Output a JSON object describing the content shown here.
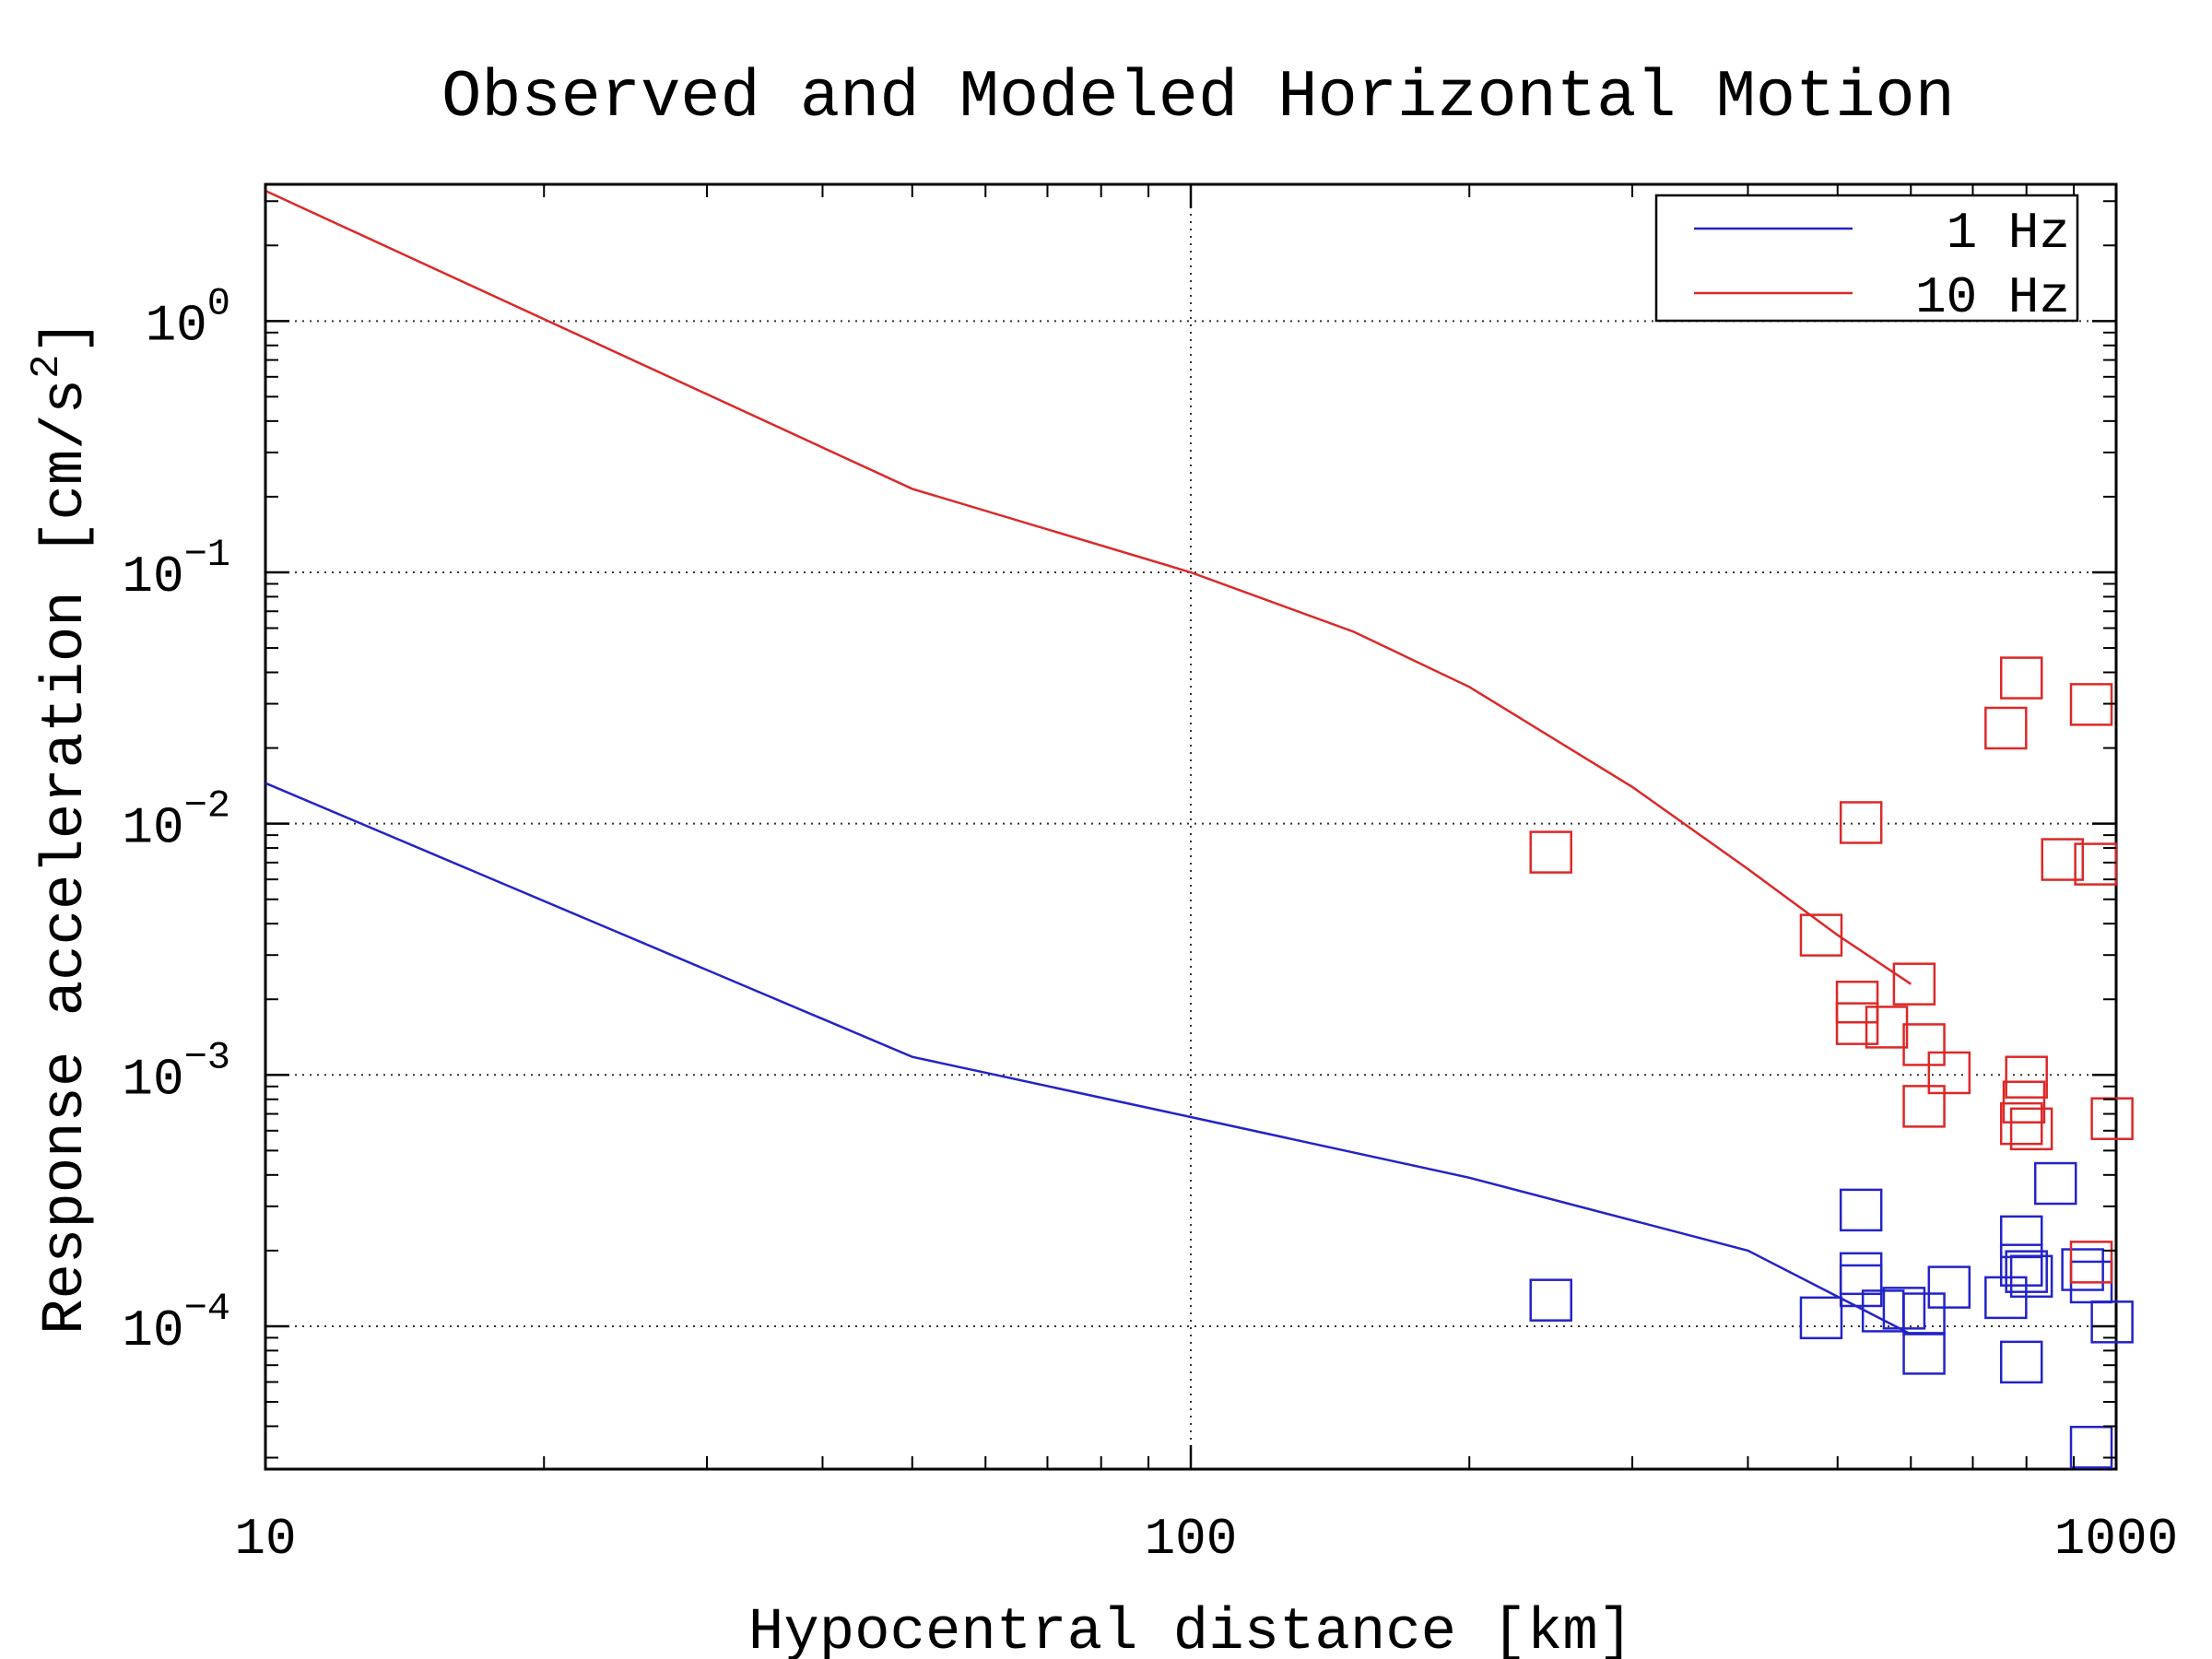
{
  "chart_data": {
    "type": "scatter",
    "title": "Observed and Modeled Horizontal Motion",
    "xlabel": "Hypocentral distance [km]",
    "ylabel": "Response acceleration [cm/s",
    "ylabel_sup": "2",
    "ylabel_tail": "]",
    "xscale": "log",
    "yscale": "log",
    "xlim": [
      10,
      1000
    ],
    "ylim": [
      2.7e-05,
      3.5
    ],
    "grid": "dotted at major ticks",
    "legend": "top-right",
    "x_ticks": [
      {
        "value": 10,
        "label": "10"
      },
      {
        "value": 100,
        "label": "100"
      },
      {
        "value": 1000,
        "label": "1000"
      }
    ],
    "y_ticks": [
      {
        "value": 1,
        "base": "10",
        "exp": "0"
      },
      {
        "value": 0.1,
        "base": "10",
        "exp": "−1"
      },
      {
        "value": 0.01,
        "base": "10",
        "exp": "−2"
      },
      {
        "value": 0.001,
        "base": "10",
        "exp": "−3"
      },
      {
        "value": 0.0001,
        "base": "10",
        "exp": "−4"
      }
    ],
    "series": [
      {
        "name": "1 Hz",
        "color": "#2323c8",
        "line": [
          [
            10,
            0.0145
          ],
          [
            50,
            0.00118
          ],
          [
            100,
            0.00068
          ],
          [
            200,
            0.00039
          ],
          [
            400,
            0.0002
          ],
          [
            600,
            9.3e-05
          ]
        ],
        "observed": [
          [
            245,
            0.000127
          ],
          [
            480,
            0.000108
          ],
          [
            530,
            0.000162
          ],
          [
            530,
            0.000145
          ],
          [
            530,
            0.00029
          ],
          [
            560,
            0.000115
          ],
          [
            590,
            0.000118
          ],
          [
            620,
            0.000112
          ],
          [
            620,
            7.8e-05
          ],
          [
            660,
            0.000143
          ],
          [
            760,
            0.00013
          ],
          [
            790,
            0.000227
          ],
          [
            790,
            0.000175
          ],
          [
            790,
            7.2e-05
          ],
          [
            800,
            0.000165
          ],
          [
            810,
            0.000158
          ],
          [
            860,
            0.00037
          ],
          [
            920,
            0.000168
          ],
          [
            940,
            0.00015
          ],
          [
            990,
            0.000104
          ],
          [
            940,
            3.3e-05
          ]
        ]
      },
      {
        "name": "10 Hz",
        "color": "#dc2828",
        "line": [
          [
            10,
            3.3
          ],
          [
            50,
            0.215
          ],
          [
            100,
            0.1
          ],
          [
            150,
            0.058
          ],
          [
            200,
            0.035
          ],
          [
            300,
            0.014
          ],
          [
            400,
            0.0066
          ],
          [
            500,
            0.0036
          ],
          [
            600,
            0.0023
          ]
        ],
        "observed": [
          [
            245,
            0.0077
          ],
          [
            480,
            0.0036
          ],
          [
            530,
            0.0101
          ],
          [
            525,
            0.00195
          ],
          [
            525,
            0.0016
          ],
          [
            565,
            0.00155
          ],
          [
            605,
            0.0023
          ],
          [
            620,
            0.00132
          ],
          [
            660,
            0.00102
          ],
          [
            620,
            0.00075
          ],
          [
            760,
            0.024
          ],
          [
            790,
            0.038
          ],
          [
            800,
            0.00098
          ],
          [
            795,
            0.00078
          ],
          [
            790,
            0.00064
          ],
          [
            810,
            0.00061
          ],
          [
            875,
            0.0072
          ],
          [
            940,
            0.0298
          ],
          [
            950,
            0.0069
          ],
          [
            940,
            0.00018
          ],
          [
            990,
            0.00067
          ]
        ]
      }
    ]
  }
}
